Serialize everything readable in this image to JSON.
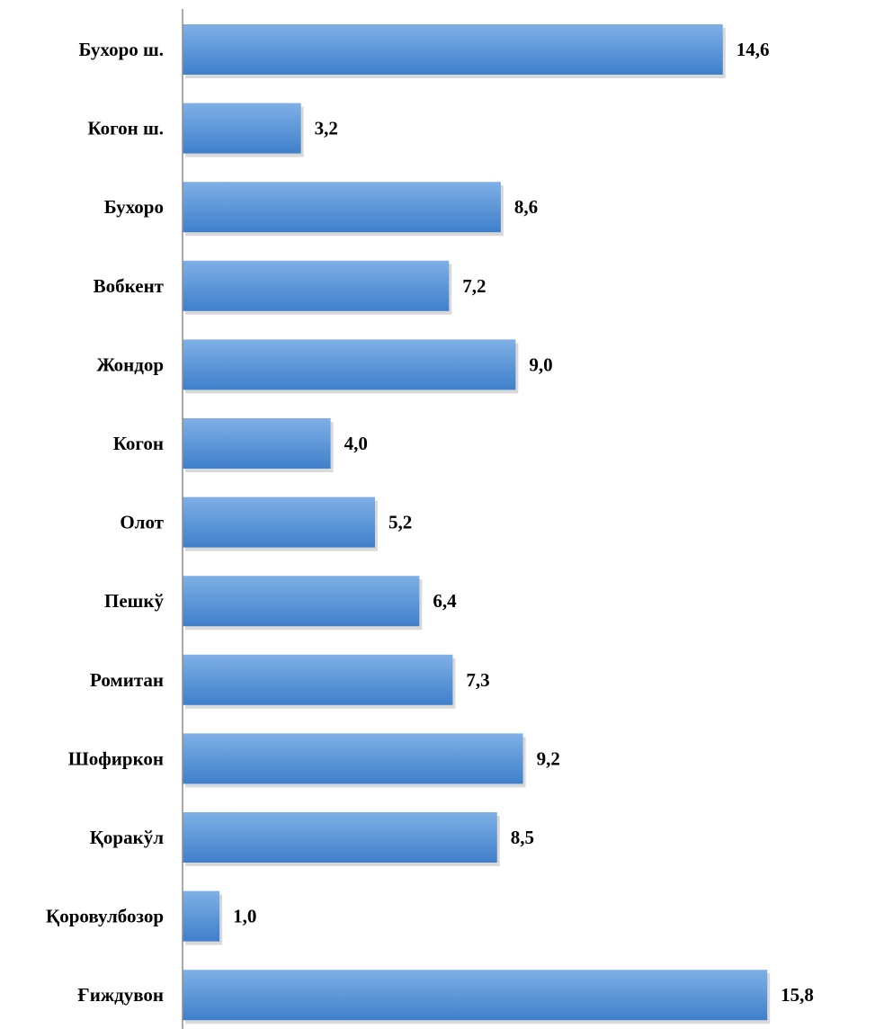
{
  "chart_data": {
    "type": "bar",
    "orientation": "horizontal",
    "title": "",
    "xlabel": "",
    "ylabel": "",
    "categories": [
      "Бухоро ш.",
      "Когон ш.",
      "Бухоро",
      "Вобкент",
      "Жондор",
      "Когон",
      "Олот",
      "Пешкў",
      "Ромитан",
      "Шофиркон",
      "Қоракўл",
      "Қоровулбозор",
      "Ғиждувон"
    ],
    "values": [
      14.6,
      3.2,
      8.6,
      7.2,
      9.0,
      4.0,
      5.2,
      6.4,
      7.3,
      9.2,
      8.5,
      1.0,
      15.8
    ],
    "value_labels": [
      "14,6",
      "3,2",
      "8,6",
      "7,2",
      "9,0",
      "4,0",
      "5,2",
      "6,4",
      "7,3",
      "9,2",
      "8,5",
      "1,0",
      "15,8"
    ],
    "xlim": [
      0,
      16
    ],
    "grid": false,
    "legend": "none",
    "colors": {
      "bar_light": "#7fb0e6",
      "bar_dark": "#3f7fcb",
      "shadow": "#c9c9c9",
      "axis": "#8c8c8c"
    }
  }
}
